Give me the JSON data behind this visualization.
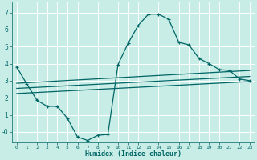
{
  "title": "",
  "xlabel": "Humidex (Indice chaleur)",
  "ylabel": "",
  "bg_color": "#c8ece6",
  "line_color": "#006666",
  "grid_color": "#ffffff",
  "xlim": [
    -0.5,
    23.5
  ],
  "ylim": [
    -0.6,
    7.6
  ],
  "xticks": [
    0,
    1,
    2,
    3,
    4,
    5,
    6,
    7,
    8,
    9,
    10,
    11,
    12,
    13,
    14,
    15,
    16,
    17,
    18,
    19,
    20,
    21,
    22,
    23
  ],
  "yticks": [
    0,
    1,
    2,
    3,
    4,
    5,
    6,
    7
  ],
  "ytick_labels": [
    "-0",
    "1",
    "2",
    "3",
    "4",
    "5",
    "6",
    "7"
  ],
  "line1_x": [
    0,
    1,
    2,
    3,
    4,
    5,
    6,
    7,
    8,
    9,
    10,
    11,
    12,
    13,
    14,
    15,
    16,
    17,
    18,
    19,
    20,
    21,
    22,
    23
  ],
  "line1_y": [
    3.8,
    2.8,
    1.85,
    1.5,
    1.5,
    0.8,
    -0.3,
    -0.5,
    -0.2,
    -0.15,
    3.95,
    5.2,
    6.25,
    6.9,
    6.9,
    6.6,
    5.25,
    5.1,
    4.3,
    4.0,
    3.65,
    3.6,
    3.1,
    3.0
  ],
  "line2_x": [
    0,
    23
  ],
  "line2_y": [
    2.85,
    3.6
  ],
  "line3_x": [
    0,
    23
  ],
  "line3_y": [
    2.55,
    3.25
  ],
  "line4_x": [
    0,
    23
  ],
  "line4_y": [
    2.25,
    2.95
  ],
  "marker": "+",
  "markersize": 3.5,
  "linewidth": 0.9
}
